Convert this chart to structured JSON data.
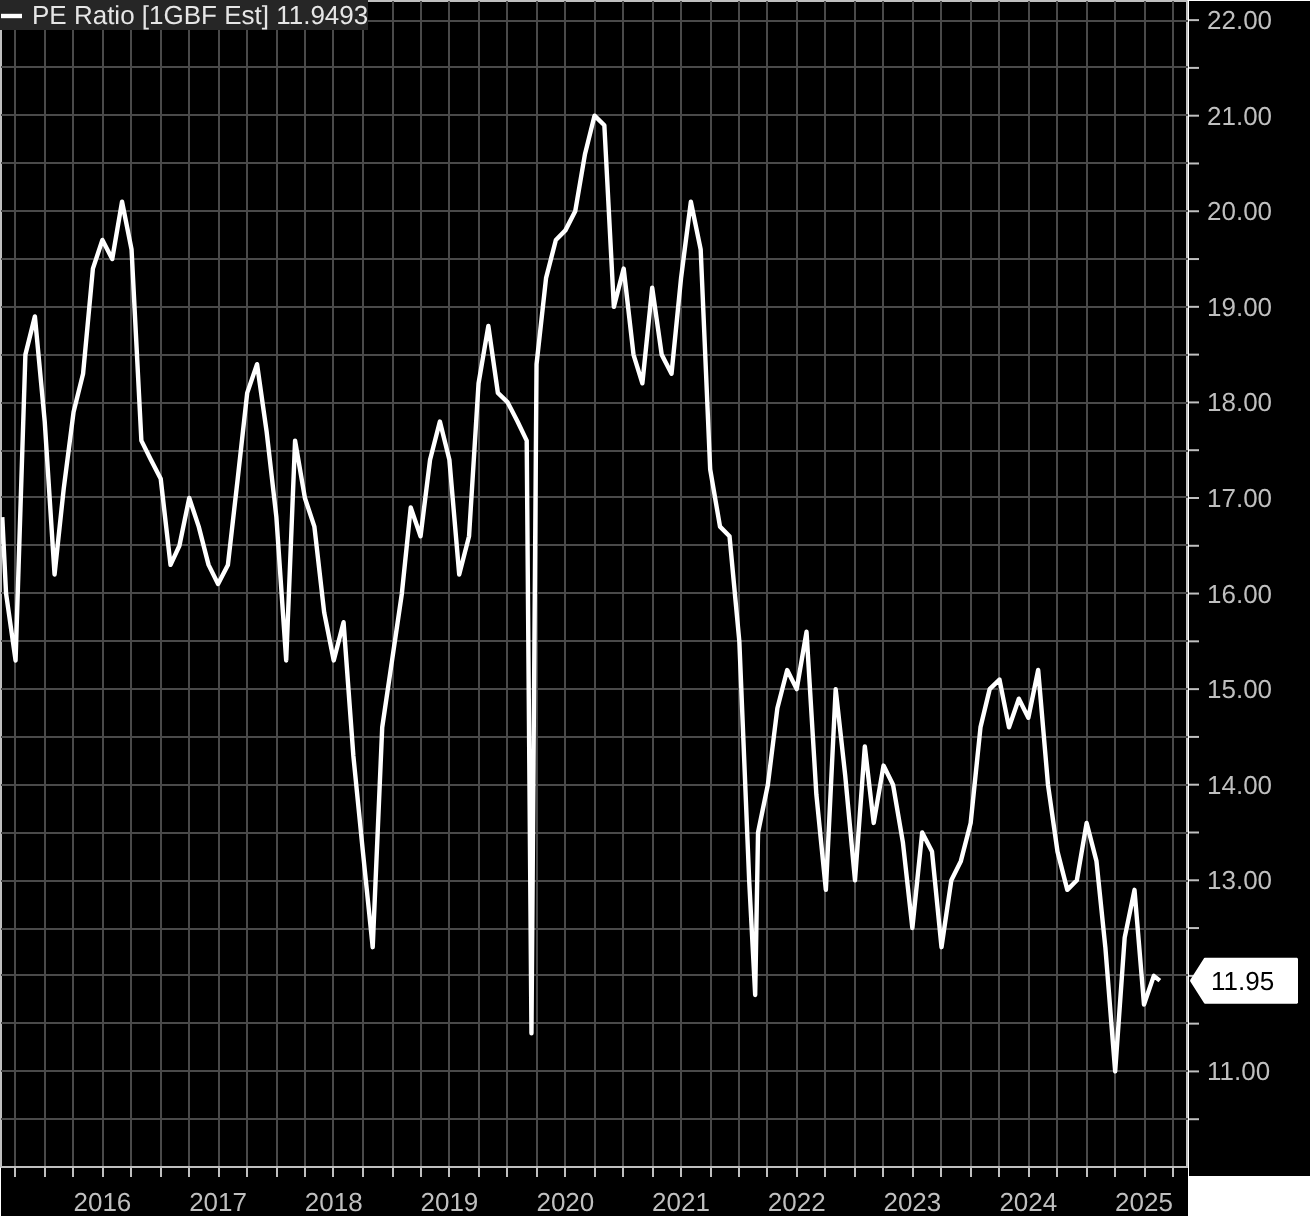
{
  "chart_data": {
    "type": "line",
    "x": [
      "2015-08-20",
      "2015-09",
      "2015-10",
      "2015-11",
      "2015-12",
      "2016-01",
      "2016-02",
      "2016-03",
      "2016-04",
      "2016-05",
      "2016-06",
      "2016-07",
      "2016-08",
      "2016-09",
      "2016-10",
      "2016-11",
      "2016-12",
      "2017-01",
      "2017-02",
      "2017-03",
      "2017-04",
      "2017-05",
      "2017-06",
      "2017-07",
      "2017-08",
      "2017-09",
      "2017-10",
      "2017-11",
      "2017-12",
      "2018-01",
      "2018-02",
      "2018-03",
      "2018-04",
      "2018-05",
      "2018-06",
      "2018-07",
      "2018-08",
      "2018-09",
      "2018-10",
      "2018-11",
      "2018-12",
      "2019-01",
      "2019-02",
      "2019-03",
      "2019-04",
      "2019-05",
      "2019-06",
      "2019-07",
      "2019-08",
      "2019-09",
      "2019-10",
      "2019-11",
      "2019-12",
      "2020-01",
      "2020-02",
      "2020-03",
      "2020-03-16",
      "2020-04",
      "2020-05",
      "2020-06",
      "2020-07",
      "2020-08",
      "2020-09",
      "2020-10",
      "2020-11",
      "2020-12",
      "2021-01",
      "2021-02",
      "2021-03",
      "2021-04",
      "2021-05",
      "2021-06",
      "2021-07",
      "2021-08",
      "2021-09",
      "2021-10",
      "2021-11",
      "2021-12",
      "2022-01",
      "2022-02",
      "2022-02-20",
      "2022-03",
      "2022-04",
      "2022-05",
      "2022-06",
      "2022-07",
      "2022-08",
      "2022-09",
      "2022-10",
      "2022-11",
      "2022-12",
      "2023-01",
      "2023-02",
      "2023-03",
      "2023-04",
      "2023-05",
      "2023-06",
      "2023-07",
      "2023-08",
      "2023-09",
      "2023-10",
      "2023-11",
      "2023-12",
      "2024-01",
      "2024-02",
      "2024-03",
      "2024-04",
      "2024-05",
      "2024-06",
      "2024-07",
      "2024-08",
      "2024-09",
      "2024-10",
      "2024-11",
      "2024-12",
      "2025-01",
      "2025-02",
      "2025-03",
      "2025-04",
      "2025-05",
      "2025-06",
      "2025-07",
      "2025-08",
      "2025-08-20"
    ],
    "series": [
      {
        "name": "PE Ratio [1GBF Est] 11.9493",
        "color": "#ffffff",
        "values": [
          16.8,
          16.0,
          15.3,
          18.5,
          18.9,
          17.8,
          16.2,
          17.1,
          17.9,
          18.3,
          19.4,
          19.7,
          19.5,
          20.1,
          19.6,
          17.6,
          17.4,
          17.2,
          16.3,
          16.5,
          17.0,
          16.7,
          16.3,
          16.1,
          16.3,
          17.2,
          18.1,
          18.4,
          17.7,
          16.8,
          15.3,
          17.6,
          17.0,
          16.7,
          15.8,
          15.3,
          15.7,
          14.3,
          13.3,
          12.3,
          14.6,
          15.3,
          16.0,
          16.9,
          16.6,
          17.4,
          17.8,
          17.4,
          16.2,
          16.6,
          18.2,
          18.8,
          18.1,
          18.0,
          17.8,
          17.6,
          11.4,
          18.4,
          19.3,
          19.7,
          19.8,
          20.0,
          20.6,
          21.0,
          20.9,
          19.0,
          19.4,
          18.5,
          18.2,
          19.2,
          18.5,
          18.3,
          19.3,
          20.1,
          19.6,
          17.3,
          16.7,
          16.6,
          15.5,
          13.0,
          11.8,
          13.5,
          14.0,
          14.8,
          15.2,
          15.0,
          15.6,
          13.9,
          12.9,
          15.0,
          14.1,
          13.0,
          14.4,
          13.6,
          14.2,
          14.0,
          13.4,
          12.5,
          13.5,
          13.3,
          12.3,
          13.0,
          13.2,
          13.6,
          14.6,
          15.0,
          15.1,
          14.6,
          14.9,
          14.7,
          15.2,
          14.0,
          13.3,
          12.9,
          13.0,
          13.6,
          13.2,
          12.3,
          11.0,
          12.4,
          12.9,
          11.7,
          12.0,
          11.95
        ]
      }
    ],
    "xlim": [
      "2015-08-16",
      "2025-11-20"
    ],
    "xticks": [
      {
        "value": "2015-10",
        "label": null
      },
      {
        "value": "2016-01",
        "label": null
      },
      {
        "value": "2016-04",
        "label": null
      },
      {
        "value": "2016-07",
        "label": "2016"
      },
      {
        "value": "2016-10",
        "label": null
      },
      {
        "value": "2017-01",
        "label": null
      },
      {
        "value": "2017-04",
        "label": null
      },
      {
        "value": "2017-07",
        "label": "2017"
      },
      {
        "value": "2017-10",
        "label": null
      },
      {
        "value": "2018-01",
        "label": null
      },
      {
        "value": "2018-04",
        "label": null
      },
      {
        "value": "2018-07",
        "label": "2018"
      },
      {
        "value": "2018-10",
        "label": null
      },
      {
        "value": "2019-01",
        "label": null
      },
      {
        "value": "2019-04",
        "label": null
      },
      {
        "value": "2019-07",
        "label": "2019"
      },
      {
        "value": "2019-10",
        "label": null
      },
      {
        "value": "2020-01",
        "label": null
      },
      {
        "value": "2020-04",
        "label": null
      },
      {
        "value": "2020-07",
        "label": "2020"
      },
      {
        "value": "2020-10",
        "label": null
      },
      {
        "value": "2021-01",
        "label": null
      },
      {
        "value": "2021-04",
        "label": null
      },
      {
        "value": "2021-07",
        "label": "2021"
      },
      {
        "value": "2021-10",
        "label": null
      },
      {
        "value": "2022-01",
        "label": null
      },
      {
        "value": "2022-04",
        "label": null
      },
      {
        "value": "2022-07",
        "label": "2022"
      },
      {
        "value": "2022-10",
        "label": null
      },
      {
        "value": "2023-01",
        "label": null
      },
      {
        "value": "2023-04",
        "label": null
      },
      {
        "value": "2023-07",
        "label": "2023"
      },
      {
        "value": "2023-10",
        "label": null
      },
      {
        "value": "2024-01",
        "label": null
      },
      {
        "value": "2024-04",
        "label": null
      },
      {
        "value": "2024-07",
        "label": "2024"
      },
      {
        "value": "2024-10",
        "label": null
      },
      {
        "value": "2025-01",
        "label": null
      },
      {
        "value": "2025-04",
        "label": null
      },
      {
        "value": "2025-07",
        "label": "2025"
      },
      {
        "value": "2025-10",
        "label": null
      }
    ],
    "ylim": [
      10.0,
      22.2
    ],
    "yticks": [
      {
        "value": 10.5,
        "label": null
      },
      {
        "value": 11,
        "label": "11.00"
      },
      {
        "value": 11.5,
        "label": null
      },
      {
        "value": 12,
        "label": null
      },
      {
        "value": 12.5,
        "label": null
      },
      {
        "value": 13,
        "label": "13.00"
      },
      {
        "value": 13.5,
        "label": null
      },
      {
        "value": 14,
        "label": "14.00"
      },
      {
        "value": 14.5,
        "label": null
      },
      {
        "value": 15,
        "label": "15.00"
      },
      {
        "value": 15.5,
        "label": null
      },
      {
        "value": 16,
        "label": "16.00"
      },
      {
        "value": 16.5,
        "label": null
      },
      {
        "value": 17,
        "label": "17.00"
      },
      {
        "value": 17.5,
        "label": null
      },
      {
        "value": 18,
        "label": "18.00"
      },
      {
        "value": 18.5,
        "label": null
      },
      {
        "value": 19,
        "label": "19.00"
      },
      {
        "value": 19.5,
        "label": null
      },
      {
        "value": 20,
        "label": "20.00"
      },
      {
        "value": 20.5,
        "label": null
      },
      {
        "value": 21,
        "label": "21.00"
      },
      {
        "value": 21.5,
        "label": null
      },
      {
        "value": 22,
        "label": "22.00"
      }
    ],
    "annotations": [
      {
        "text": "11.95",
        "x": "2025-08-20",
        "y": 11.95
      }
    ],
    "grid": true,
    "legend": "top left",
    "line_style": "solid",
    "marker": "none"
  }
}
